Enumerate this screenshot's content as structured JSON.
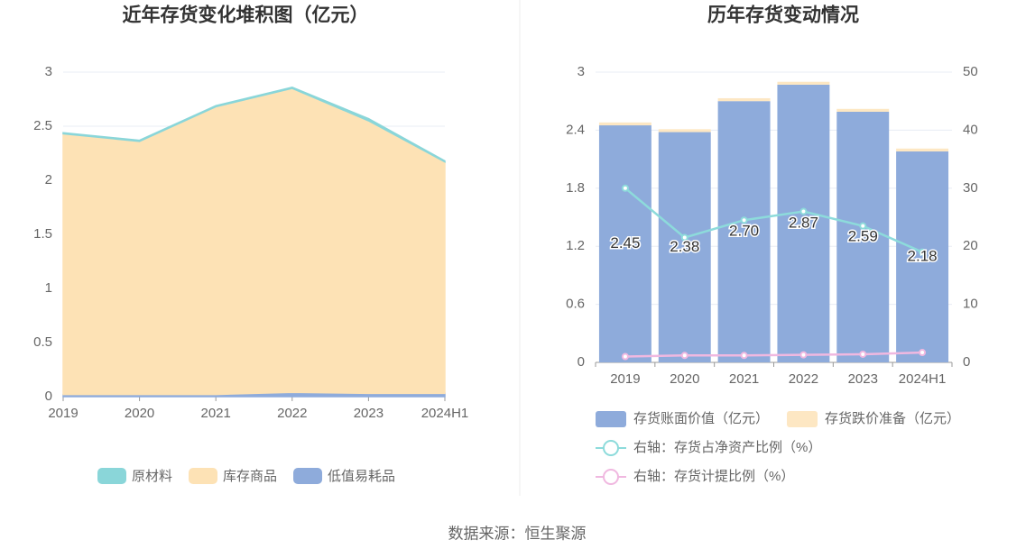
{
  "chart_data": [
    {
      "type": "stacked_area",
      "title": "近年存货变化堆积图（亿元）",
      "categories": [
        "2019",
        "2020",
        "2021",
        "2022",
        "2023",
        "2024H1"
      ],
      "series": [
        {
          "name": "原材料",
          "color": "#8ad6d9",
          "values": [
            0.01,
            0.01,
            0.01,
            0.01,
            0.02,
            0.01
          ]
        },
        {
          "name": "库存商品",
          "color": "#fde2b5",
          "values": [
            2.41,
            2.34,
            2.66,
            2.81,
            2.52,
            2.14
          ]
        },
        {
          "name": "低值易耗品",
          "color": "#8eabdb",
          "values": [
            0.02,
            0.02,
            0.02,
            0.04,
            0.03,
            0.03
          ]
        }
      ],
      "ylim": [
        0,
        3
      ],
      "yticks": [
        0,
        0.5,
        1,
        1.5,
        2,
        2.5,
        3
      ],
      "grid": true
    },
    {
      "type": "bar_line",
      "title": "历年存货变动情况",
      "categories": [
        "2019",
        "2020",
        "2021",
        "2022",
        "2023",
        "2024H1"
      ],
      "series": [
        {
          "name": "存货账面价值（亿元）",
          "color": "#8eabdb",
          "values": [
            2.45,
            2.38,
            2.7,
            2.87,
            2.59,
            2.18
          ],
          "value_labels": [
            "2.45",
            "2.38",
            "2.70",
            "2.87",
            "2.59",
            "2.18"
          ]
        },
        {
          "name": "存货跌价准备（亿元）",
          "color": "#fde7c3",
          "values": [
            0.03,
            0.03,
            0.03,
            0.03,
            0.03,
            0.03
          ]
        },
        {
          "name": "右轴：存货占净资产比例（%）",
          "color": "#8ddbdb",
          "axis": "y2",
          "values": [
            30,
            21.5,
            24.5,
            26,
            23.5,
            19
          ]
        },
        {
          "name": "右轴：存货计提比例（%）",
          "color": "#f0b8e0",
          "axis": "y2",
          "values": [
            1,
            1.2,
            1.2,
            1.3,
            1.4,
            1.7
          ]
        }
      ],
      "ylim": [
        0,
        3
      ],
      "yticks": [
        0,
        0.6,
        1.2,
        1.8,
        2.4,
        3
      ],
      "y2lim": [
        0,
        50
      ],
      "y2ticks": [
        0,
        10,
        20,
        30,
        40,
        50
      ],
      "grid": true
    }
  ],
  "source": "数据来源：恒生聚源"
}
